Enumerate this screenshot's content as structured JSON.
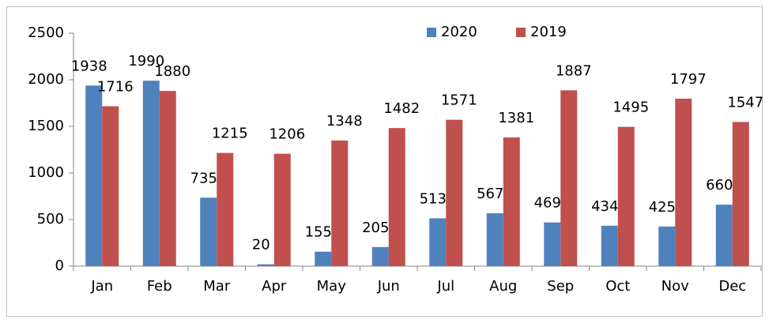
{
  "chart_data": {
    "type": "bar",
    "categories": [
      "Jan",
      "Feb",
      "Mar",
      "Apr",
      "May",
      "Jun",
      "Jul",
      "Aug",
      "Sep",
      "Oct",
      "Nov",
      "Dec"
    ],
    "series": [
      {
        "name": "2020",
        "color": "#4f81bd",
        "values": [
          1938,
          1990,
          735,
          20,
          155,
          205,
          513,
          567,
          469,
          434,
          425,
          660
        ]
      },
      {
        "name": "2019",
        "color": "#c0504d",
        "values": [
          1716,
          1880,
          1215,
          1206,
          1348,
          1482,
          1571,
          1381,
          1887,
          1495,
          1797,
          1547
        ]
      }
    ],
    "ylim": [
      0,
      2500
    ],
    "yticks": [
      0,
      500,
      1000,
      1500,
      2000,
      2500
    ],
    "grid": false,
    "legend": "top",
    "data_labels": true
  }
}
